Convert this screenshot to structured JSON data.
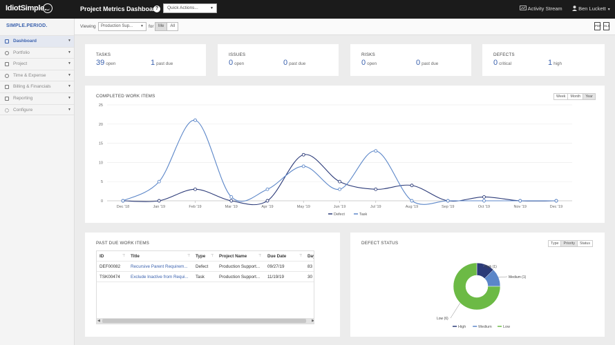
{
  "header": {
    "logo_text": "IdiotSimple.",
    "title": "Project Metrics Dashboard",
    "quick_actions": "Quick Actions...",
    "activity_stream": "Activity Stream",
    "user_name": "Ben Luckett"
  },
  "sidebar": {
    "brand": "SIMPLE.PERIOD.",
    "items": [
      {
        "label": "Dashboard",
        "icon": "chart-icon"
      },
      {
        "label": "Portfolio",
        "icon": "pie-icon"
      },
      {
        "label": "Project",
        "icon": "clipboard-icon"
      },
      {
        "label": "Time & Expense",
        "icon": "clock-icon"
      },
      {
        "label": "Billing & Financials",
        "icon": "card-icon"
      },
      {
        "label": "Reporting",
        "icon": "document-icon"
      },
      {
        "label": "Configure",
        "icon": "gear-icon"
      }
    ]
  },
  "subbar": {
    "viewing_label": "Viewing",
    "viewing_value": "Production Sup...",
    "for_label": "for",
    "me": "Me",
    "all": "All",
    "pdf": "PDF",
    "xls": "XLS"
  },
  "stats": {
    "tasks": {
      "title": "TASKS",
      "v1": "39",
      "l1": "open",
      "v2": "1",
      "l2": "past due"
    },
    "issues": {
      "title": "ISSUES",
      "v1": "0",
      "l1": "open",
      "v2": "0",
      "l2": "past due"
    },
    "risks": {
      "title": "RISKS",
      "v1": "0",
      "l1": "open",
      "v2": "0",
      "l2": "past due"
    },
    "defects": {
      "title": "DEFECTS",
      "v1": "0",
      "l1": "critical",
      "v2": "1",
      "l2": "high"
    }
  },
  "completed": {
    "title": "COMPLETED WORK ITEMS",
    "toggles": [
      "Week",
      "Month",
      "Year"
    ],
    "active_toggle": "Year"
  },
  "past_due": {
    "title": "PAST DUE WORK ITEMS",
    "columns": [
      "ID",
      "Title",
      "Type",
      "Project Name",
      "Due Date",
      "Days L"
    ],
    "rows": [
      [
        "DEF00082",
        "Recursive Parent Requirem...",
        "Defect",
        "Production Support...",
        "09/27/19",
        "83"
      ],
      [
        "TSK00474",
        "Exclude Inactive from Requi...",
        "Task",
        "Production Support...",
        "11/19/19",
        "30"
      ]
    ]
  },
  "defect_status": {
    "title": "DEFECT STATUS",
    "toggles": [
      "Type",
      "Priority",
      "Status"
    ],
    "active_toggle": "Priority"
  },
  "chart_data": [
    {
      "type": "line",
      "categories": [
        "Dec '18",
        "Jan '19",
        "Feb '19",
        "Mar '19",
        "Apr '19",
        "May '19",
        "Jun '19",
        "Jul '19",
        "Aug '19",
        "Sep '19",
        "Oct '19",
        "Nov '19",
        "Dec '19"
      ],
      "series": [
        {
          "name": "Defect",
          "color": "#2b3a78",
          "values": [
            0,
            0,
            3,
            0,
            0,
            12,
            5,
            3,
            4,
            0,
            1,
            0,
            0
          ]
        },
        {
          "name": "Task",
          "color": "#5b86c8",
          "values": [
            0,
            5,
            21,
            1,
            3,
            9,
            3,
            13,
            0,
            0,
            0,
            0,
            0
          ]
        }
      ],
      "y_ticks": [
        "0",
        "5",
        "10",
        "15",
        "20",
        "25"
      ],
      "ylim": [
        0,
        25
      ],
      "grid": true,
      "legend": "bottom"
    },
    {
      "type": "pie",
      "donut": true,
      "slices": [
        {
          "label": "High (1)",
          "legend": "High",
          "value": 1,
          "color": "#2b3a78"
        },
        {
          "label": "Medium (1)",
          "legend": "Medium",
          "value": 1,
          "color": "#5b86c8"
        },
        {
          "label": "Low (6)",
          "legend": "Low",
          "value": 6,
          "color": "#6cba45"
        }
      ],
      "legend": "bottom"
    }
  ]
}
